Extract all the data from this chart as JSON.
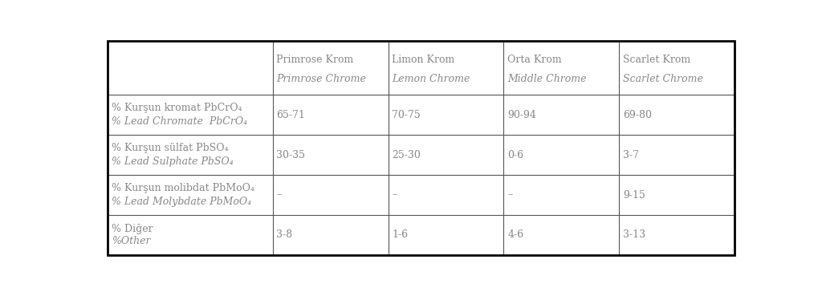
{
  "col_headers": [
    [
      "Primrose Krom",
      "Primrose Chrome"
    ],
    [
      "Limon Krom",
      "Lemon Chrome"
    ],
    [
      "Orta Krom",
      "Middle Chrome"
    ],
    [
      "Scarlet Krom",
      "Scarlet Chrome"
    ]
  ],
  "row_headers": [
    [
      "% Kurşun kromat PbCrO₄",
      "% Lead Chromate  PbCrO₄"
    ],
    [
      "% Kurşun sülfat PbSO₄",
      "% Lead Sulphate PbSO₄"
    ],
    [
      "% Kurşun molibdat PbMoO₄",
      "% Lead Molybdate PbMoO₄"
    ],
    [
      "% Diğer",
      "%Other"
    ]
  ],
  "cells": [
    [
      "65-71",
      "70-75",
      "90-94",
      "69-80"
    ],
    [
      "30-35",
      "25-30",
      "0-6",
      "3-7"
    ],
    [
      "–",
      "–",
      "–",
      "9-15"
    ],
    [
      "3-8",
      "1-6",
      "4-6",
      "3-13"
    ]
  ],
  "bg_color": "#ffffff",
  "outer_border_color": "#000000",
  "inner_border_color": "#555555",
  "text_color": "#888888",
  "font_size": 9.0,
  "outer_lw": 2.0,
  "inner_lw": 0.8
}
